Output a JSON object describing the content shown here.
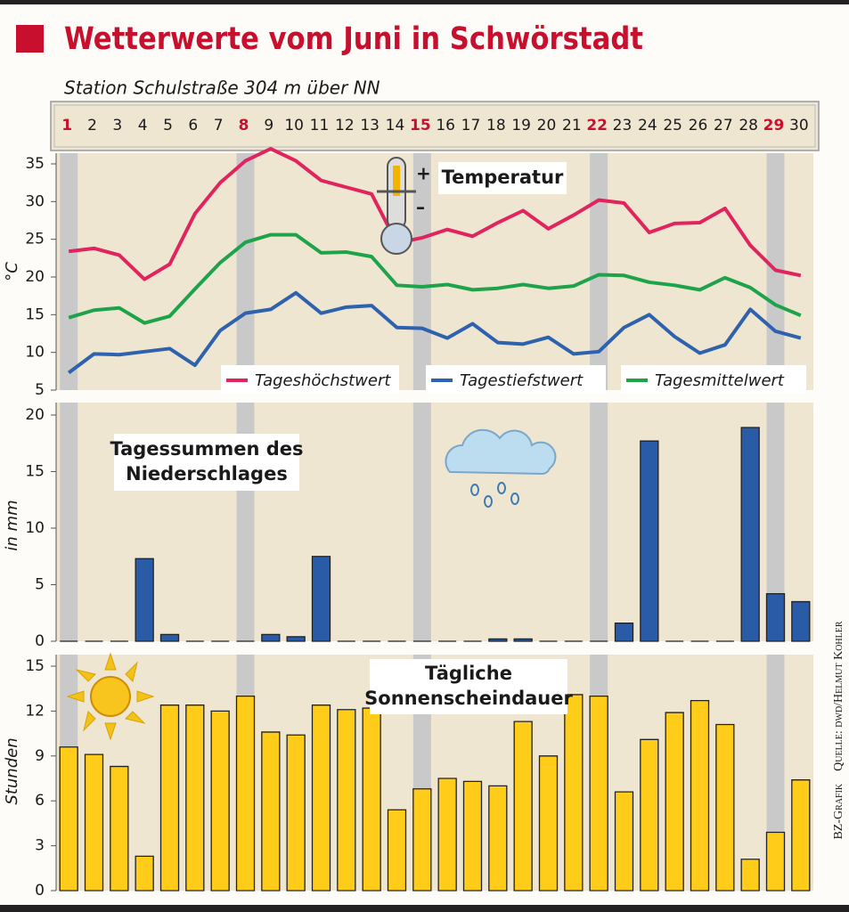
{
  "header": {
    "title": "Wetterwerte vom Juni in Schwörstadt",
    "subtitle": "Station Schulstraße 304 m über NN"
  },
  "source": {
    "graphic": "BZ-Grafik",
    "credit": "Quelle: dwd/Helmut Kohler"
  },
  "chart_data": [
    {
      "type": "line",
      "label": [
        "Temperatur"
      ],
      "ylabel": "°C",
      "categories": [
        "1",
        "2",
        "3",
        "4",
        "5",
        "6",
        "7",
        "8",
        "9",
        "10",
        "11",
        "12",
        "13",
        "14",
        "15",
        "16",
        "17",
        "18",
        "19",
        "20",
        "21",
        "22",
        "23",
        "24",
        "25",
        "26",
        "27",
        "28",
        "29",
        "30"
      ],
      "category_colors": [
        "#c8102e",
        "#1a1a1a",
        "#1a1a1a",
        "#1a1a1a",
        "#1a1a1a",
        "#1a1a1a",
        "#1a1a1a",
        "#c8102e",
        "#1a1a1a",
        "#1a1a1a",
        "#1a1a1a",
        "#1a1a1a",
        "#1a1a1a",
        "#1a1a1a",
        "#c8102e",
        "#1a1a1a",
        "#1a1a1a",
        "#1a1a1a",
        "#1a1a1a",
        "#1a1a1a",
        "#1a1a1a",
        "#c8102e",
        "#1a1a1a",
        "#1a1a1a",
        "#1a1a1a",
        "#1a1a1a",
        "#1a1a1a",
        "#1a1a1a",
        "#c8102e",
        "#1a1a1a"
      ],
      "series": [
        {
          "name": "Tageshöchstwert",
          "color": "#e0245e",
          "values": [
            23.4,
            23.8,
            22.9,
            19.7,
            21.7,
            28.4,
            32.5,
            35.4,
            37.0,
            35.4,
            32.8,
            31.9,
            31.0,
            24.5,
            25.2,
            26.3,
            25.4,
            27.2,
            28.8,
            26.4,
            28.2,
            30.2,
            29.8,
            25.9,
            27.1,
            27.2,
            29.1,
            24.2,
            20.9,
            20.2
          ]
        },
        {
          "name": "Tagestiefstwert",
          "color": "#2e62ad",
          "values": [
            7.3,
            9.8,
            9.7,
            10.1,
            10.5,
            8.3,
            12.9,
            15.2,
            15.7,
            17.9,
            15.2,
            16.0,
            16.2,
            13.3,
            13.2,
            11.9,
            13.8,
            11.3,
            11.1,
            12.0,
            9.8,
            10.1,
            13.3,
            15.0,
            12.1,
            9.9,
            11.0,
            15.7,
            12.8,
            11.9
          ]
        },
        {
          "name": "Tagesmittelwert",
          "color": "#1fa34a",
          "values": [
            14.6,
            15.6,
            15.9,
            13.9,
            14.8,
            18.4,
            21.9,
            24.6,
            25.6,
            25.6,
            23.2,
            23.3,
            22.7,
            18.9,
            18.7,
            19.0,
            18.3,
            18.5,
            19.0,
            18.5,
            18.8,
            20.3,
            20.2,
            19.3,
            18.9,
            18.3,
            19.9,
            18.6,
            16.3,
            14.9
          ]
        }
      ],
      "ylim": [
        5,
        35
      ],
      "yticks": [
        5,
        10,
        15,
        20,
        25,
        30,
        35
      ]
    },
    {
      "type": "bar",
      "label": [
        "Tagessummen des",
        "Niederschlages"
      ],
      "ylabel": "in mm",
      "color": "#2a5ba6",
      "values": [
        0,
        0,
        0,
        7.3,
        0.6,
        0,
        0,
        0,
        0.6,
        0.4,
        7.5,
        0,
        0,
        0,
        0,
        0,
        0,
        0.2,
        0.2,
        0,
        0,
        0,
        1.6,
        17.7,
        0,
        0,
        0,
        18.9,
        4.2,
        3.5
      ],
      "ylim": [
        0,
        20
      ],
      "yticks": [
        0,
        5,
        10,
        15,
        20
      ]
    },
    {
      "type": "bar",
      "label": [
        "Tägliche",
        "Sonnenscheindauer"
      ],
      "ylabel": "Stunden",
      "color": "#ffcc1a",
      "values": [
        9.6,
        9.1,
        8.3,
        2.3,
        12.4,
        12.4,
        12.0,
        13.0,
        10.6,
        10.4,
        12.4,
        12.1,
        12.2,
        5.4,
        6.8,
        7.5,
        7.3,
        7.0,
        11.3,
        9.0,
        13.1,
        13.0,
        6.6,
        10.1,
        11.9,
        12.7,
        11.1,
        2.1,
        3.9,
        7.4
      ],
      "ylim": [
        0,
        15
      ],
      "yticks": [
        0,
        3,
        6,
        9,
        12,
        15
      ]
    }
  ]
}
